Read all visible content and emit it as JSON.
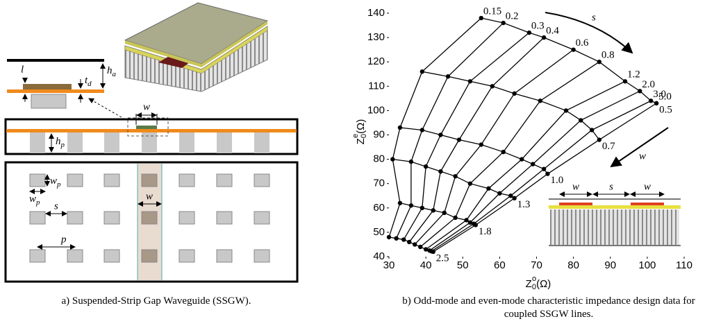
{
  "diagram": {
    "cross_section_labels": {
      "l": "l",
      "t_d": {
        "base": "t",
        "sub": "d"
      },
      "h_a": {
        "base": "h",
        "sub": "a"
      }
    },
    "side_labels": {
      "w": "w",
      "h_p": {
        "base": "h",
        "sub": "p"
      }
    },
    "top_labels": {
      "w_p_vertical": {
        "base": "w",
        "sub": "p"
      },
      "w_p_horizontal": {
        "base": "w",
        "sub": "p"
      },
      "s": "s",
      "p": "p",
      "w": "w"
    },
    "caption": "a)  Suspended-Strip Gap Waveguide (SSGW)."
  },
  "chart_data": {
    "type": "line",
    "xlabel": {
      "base": "Z",
      "sub": "0",
      "sup": "o",
      "unit": "(Ω)"
    },
    "ylabel": {
      "base": "Z",
      "sub": "0",
      "sup": "e",
      "unit": "(Ω)"
    },
    "xlim": [
      30,
      110
    ],
    "xticks": [
      30,
      40,
      50,
      60,
      70,
      80,
      90,
      100,
      110
    ],
    "ylim": [
      40,
      140
    ],
    "yticks": [
      40,
      50,
      60,
      70,
      80,
      90,
      100,
      110,
      120,
      130,
      140
    ],
    "color": "#000000",
    "s_labels": [
      "0.15",
      "0.2",
      "0.3",
      "0.4",
      "0.6",
      "0.8",
      "1.2",
      "2.0",
      "3.0",
      "5.0"
    ],
    "series": [
      {
        "name": "0.5",
        "x": [
          55,
          61,
          68,
          72,
          80,
          87,
          94,
          98,
          101,
          102.5
        ],
        "values": [
          138,
          136,
          132,
          130,
          125,
          120,
          112,
          108,
          104,
          103
        ]
      },
      {
        "name": "0.7",
        "x": [
          39,
          46,
          52,
          58,
          64,
          71,
          78,
          82,
          85,
          87
        ],
        "values": [
          116,
          114,
          112,
          110,
          107,
          104,
          100,
          96,
          92,
          88
        ]
      },
      {
        "name": "1.0",
        "x": [
          33,
          39,
          44,
          49,
          55,
          61,
          66,
          69,
          72,
          73
        ],
        "values": [
          93,
          92,
          90,
          88,
          86,
          83,
          80,
          78,
          76,
          74
        ]
      },
      {
        "name": "1.3",
        "x": [
          31,
          36,
          40,
          44,
          48,
          52,
          57,
          60,
          63,
          64
        ],
        "values": [
          80,
          79,
          77,
          75,
          73,
          70,
          68,
          66,
          65,
          64
        ]
      },
      {
        "name": "1.8",
        "x": [
          33,
          36,
          39,
          42,
          45,
          48,
          51,
          52,
          53,
          53.5
        ],
        "values": [
          62,
          61,
          60,
          59,
          58,
          56,
          55,
          54,
          53.5,
          53
        ]
      },
      {
        "name": "2.5",
        "x": [
          30,
          32,
          34,
          35.5,
          37,
          38.5,
          40,
          41,
          41.5,
          42
        ],
        "values": [
          48,
          47.5,
          47,
          46,
          45,
          44,
          43,
          42.5,
          42.2,
          42
        ]
      }
    ],
    "annotations": {
      "s": "s",
      "w": "w"
    },
    "inset_labels": [
      "w",
      "s",
      "w"
    ],
    "caption": "b)  Odd-mode and even-mode characteristic impedance design data for coupled SSGW lines."
  }
}
